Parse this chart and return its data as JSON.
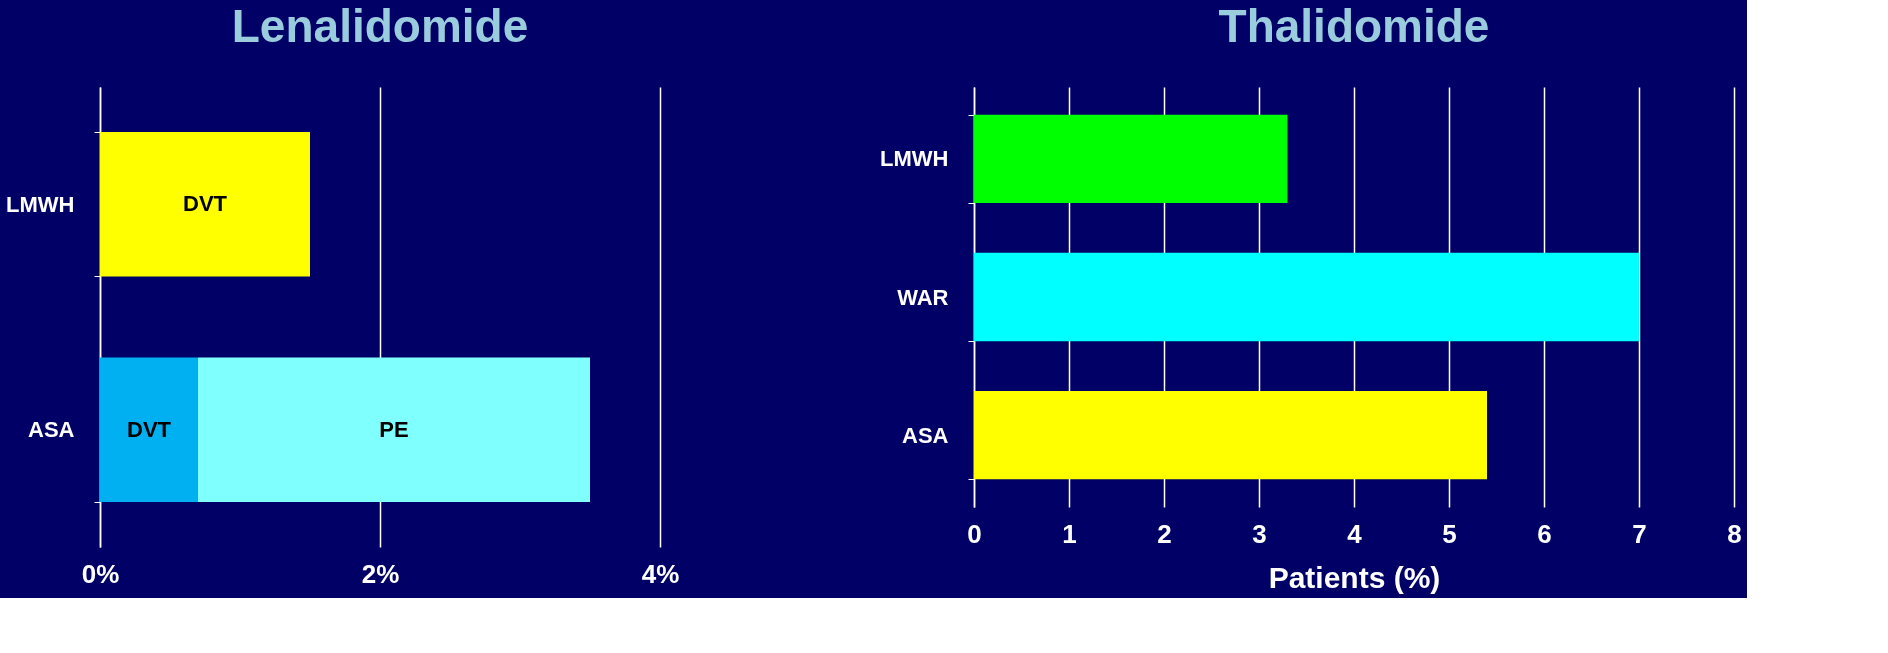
{
  "chart_data": [
    {
      "type": "bar",
      "title": "Lenalidomide",
      "orientation": "horizontal",
      "stacked": true,
      "categories": [
        "LMWH",
        "ASA"
      ],
      "series": [
        {
          "name": "DVT",
          "colors": [
            "#ffff00",
            "#00b0f0"
          ],
          "values": [
            1.5,
            0.7
          ]
        },
        {
          "name": "PE",
          "color": "#80ffff",
          "values": [
            null,
            2.8
          ]
        }
      ],
      "xlim": [
        0,
        4
      ],
      "xticks": [
        {
          "value": 0,
          "label": "0%"
        },
        {
          "value": 2,
          "label": "2%"
        },
        {
          "value": 4,
          "label": "4%"
        }
      ],
      "grid": "x"
    },
    {
      "type": "bar",
      "title": "Thalidomide",
      "orientation": "horizontal",
      "categories": [
        "LMWH",
        "WAR",
        "ASA"
      ],
      "series": [
        {
          "colors": [
            "#00ff00",
            "#00ffff",
            "#ffff00"
          ],
          "values": [
            3.3,
            7,
            5.4
          ]
        }
      ],
      "xlim": [
        0,
        8
      ],
      "xticks": [
        0,
        1,
        2,
        3,
        4,
        5,
        6,
        7,
        8
      ],
      "xlabel": "Patients (%)",
      "grid": "x"
    }
  ]
}
